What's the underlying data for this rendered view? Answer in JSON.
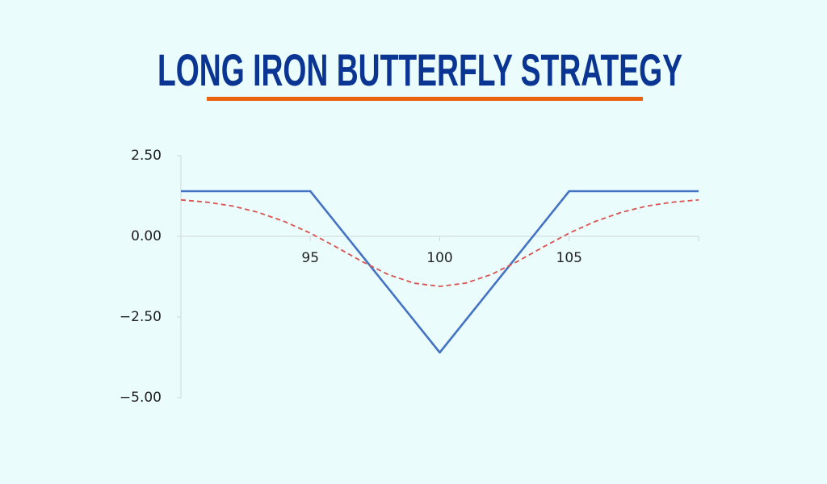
{
  "chart_data": {
    "type": "line",
    "title": "LONG IRON BUTTERFLY STRATEGY",
    "xlim": [
      90,
      110
    ],
    "xticks": [
      95,
      100,
      105
    ],
    "ylim": [
      -5,
      2.5
    ],
    "yticks": [
      {
        "value": 2.5,
        "label": "2.50"
      },
      {
        "value": 0,
        "label": "0.00"
      },
      {
        "value": -2.5,
        "label": "−2.50"
      },
      {
        "value": -5,
        "label": "−5.00"
      }
    ],
    "grid": false,
    "series": [
      {
        "color": "#4472c4",
        "dash": false,
        "x": [
          90,
          95,
          100,
          105,
          110
        ],
        "values": [
          1.4,
          1.4,
          -3.6,
          1.4,
          1.4
        ]
      },
      {
        "color": "#d9534f",
        "dash": true,
        "x": [
          90,
          91,
          92,
          93,
          94,
          95,
          96,
          97,
          98,
          99,
          100,
          101,
          102,
          103,
          104,
          105,
          106,
          107,
          108,
          109,
          110
        ],
        "values": [
          1.13,
          1.06,
          0.94,
          0.74,
          0.46,
          0.1,
          -0.33,
          -0.78,
          -1.18,
          -1.45,
          -1.55,
          -1.45,
          -1.18,
          -0.78,
          -0.33,
          0.1,
          0.46,
          0.74,
          0.94,
          1.06,
          1.13
        ]
      }
    ]
  }
}
